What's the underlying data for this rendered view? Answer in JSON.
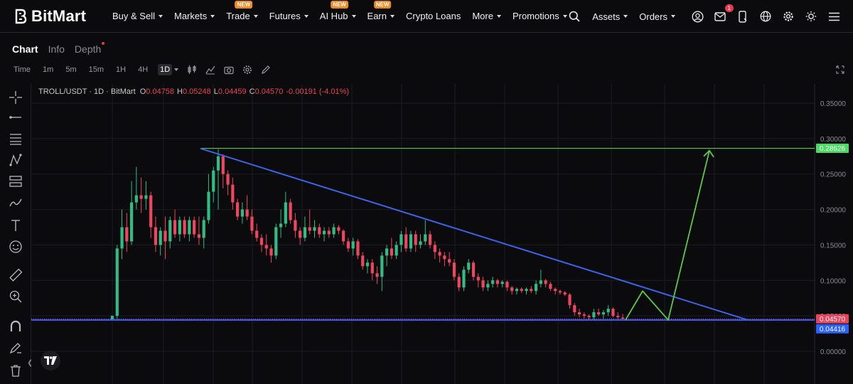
{
  "brand": {
    "name": "BitMart"
  },
  "nav": {
    "items": [
      {
        "label": "Buy & Sell",
        "caret": true,
        "badge": ""
      },
      {
        "label": "Markets",
        "caret": true,
        "badge": ""
      },
      {
        "label": "Trade",
        "caret": true,
        "badge": "NEW"
      },
      {
        "label": "Futures",
        "caret": true,
        "badge": ""
      },
      {
        "label": "AI Hub",
        "caret": true,
        "badge": "NEW"
      },
      {
        "label": "Earn",
        "caret": true,
        "badge": "NEW"
      },
      {
        "label": "Crypto Loans",
        "caret": false,
        "badge": ""
      },
      {
        "label": "More",
        "caret": true,
        "badge": ""
      },
      {
        "label": "Promotions",
        "caret": true,
        "badge": ""
      }
    ],
    "assets_label": "Assets",
    "orders_label": "Orders",
    "notification_count": "1"
  },
  "tabs": {
    "chart": "Chart",
    "info": "Info",
    "depth": "Depth"
  },
  "timeframes": {
    "time_label": "Time",
    "items": [
      "1m",
      "5m",
      "15m",
      "1H",
      "4H",
      "1D"
    ],
    "active": "1D"
  },
  "legend": {
    "symbol": "TROLL/USDT · 1D · BitMart",
    "open_label": "O",
    "open": "0.04758",
    "high_label": "H",
    "high": "0.05248",
    "low_label": "L",
    "low": "0.04459",
    "close_label": "C",
    "close": "0.04570",
    "change": "-0.00191 (-4.01%)"
  },
  "chart_data": {
    "type": "candlestick",
    "pair": "TROLL/USDT",
    "interval": "1D",
    "exchange": "BitMart",
    "ylim": [
      -0.01,
      0.355
    ],
    "y_ticks": [
      {
        "value": 0.0,
        "label": "0.00000"
      },
      {
        "value": 0.05,
        "label": "0.05000"
      },
      {
        "value": 0.1,
        "label": "0.10000"
      },
      {
        "value": 0.15,
        "label": "0.15000"
      },
      {
        "value": 0.2,
        "label": "0.20000"
      },
      {
        "value": 0.25,
        "label": "0.25000"
      },
      {
        "value": 0.3,
        "label": "0.30000"
      },
      {
        "value": 0.35,
        "label": "0.35000"
      }
    ],
    "price_labels": [
      {
        "value": 0.28626,
        "label": "0.28626",
        "color": "#4cd964"
      },
      {
        "value": 0.0457,
        "label": "0.04570",
        "color": "#e8435a"
      },
      {
        "value": 0.04416,
        "label": "0.04416",
        "color": "#2962ff"
      }
    ],
    "candles": [
      [
        0.045,
        0.05,
        0.045,
        0.05
      ],
      [
        0.05,
        0.15,
        0.045,
        0.145
      ],
      [
        0.145,
        0.2,
        0.13,
        0.175
      ],
      [
        0.175,
        0.195,
        0.14,
        0.155
      ],
      [
        0.155,
        0.24,
        0.15,
        0.21
      ],
      [
        0.21,
        0.26,
        0.2,
        0.22
      ],
      [
        0.22,
        0.245,
        0.195,
        0.215
      ],
      [
        0.215,
        0.24,
        0.2,
        0.22
      ],
      [
        0.22,
        0.225,
        0.16,
        0.175
      ],
      [
        0.175,
        0.19,
        0.14,
        0.15
      ],
      [
        0.15,
        0.175,
        0.135,
        0.17
      ],
      [
        0.17,
        0.19,
        0.13,
        0.155
      ],
      [
        0.155,
        0.19,
        0.145,
        0.185
      ],
      [
        0.185,
        0.2,
        0.16,
        0.165
      ],
      [
        0.165,
        0.19,
        0.155,
        0.185
      ],
      [
        0.185,
        0.19,
        0.16,
        0.165
      ],
      [
        0.165,
        0.19,
        0.155,
        0.185
      ],
      [
        0.185,
        0.19,
        0.16,
        0.165
      ],
      [
        0.165,
        0.19,
        0.15,
        0.16
      ],
      [
        0.16,
        0.19,
        0.145,
        0.185
      ],
      [
        0.185,
        0.25,
        0.18,
        0.225
      ],
      [
        0.225,
        0.26,
        0.21,
        0.255
      ],
      [
        0.255,
        0.285,
        0.2,
        0.275
      ],
      [
        0.275,
        0.278,
        0.23,
        0.25
      ],
      [
        0.25,
        0.255,
        0.22,
        0.235
      ],
      [
        0.235,
        0.245,
        0.2,
        0.21
      ],
      [
        0.21,
        0.215,
        0.185,
        0.19
      ],
      [
        0.19,
        0.21,
        0.18,
        0.2
      ],
      [
        0.2,
        0.22,
        0.185,
        0.19
      ],
      [
        0.19,
        0.2,
        0.165,
        0.17
      ],
      [
        0.17,
        0.18,
        0.155,
        0.16
      ],
      [
        0.16,
        0.165,
        0.14,
        0.15
      ],
      [
        0.15,
        0.165,
        0.135,
        0.145
      ],
      [
        0.145,
        0.15,
        0.125,
        0.135
      ],
      [
        0.135,
        0.18,
        0.13,
        0.175
      ],
      [
        0.175,
        0.2,
        0.16,
        0.18
      ],
      [
        0.18,
        0.225,
        0.175,
        0.21
      ],
      [
        0.21,
        0.215,
        0.18,
        0.185
      ],
      [
        0.185,
        0.195,
        0.16,
        0.17
      ],
      [
        0.17,
        0.175,
        0.15,
        0.16
      ],
      [
        0.16,
        0.19,
        0.155,
        0.175
      ],
      [
        0.175,
        0.2,
        0.165,
        0.17
      ],
      [
        0.17,
        0.185,
        0.16,
        0.175
      ],
      [
        0.175,
        0.18,
        0.16,
        0.165
      ],
      [
        0.165,
        0.175,
        0.155,
        0.17
      ],
      [
        0.17,
        0.175,
        0.16,
        0.165
      ],
      [
        0.165,
        0.18,
        0.16,
        0.175
      ],
      [
        0.175,
        0.178,
        0.165,
        0.17
      ],
      [
        0.17,
        0.172,
        0.15,
        0.155
      ],
      [
        0.155,
        0.16,
        0.14,
        0.145
      ],
      [
        0.145,
        0.16,
        0.135,
        0.155
      ],
      [
        0.155,
        0.158,
        0.13,
        0.135
      ],
      [
        0.135,
        0.14,
        0.115,
        0.12
      ],
      [
        0.12,
        0.13,
        0.11,
        0.125
      ],
      [
        0.125,
        0.13,
        0.1,
        0.11
      ],
      [
        0.11,
        0.12,
        0.095,
        0.105
      ],
      [
        0.105,
        0.14,
        0.085,
        0.135
      ],
      [
        0.135,
        0.15,
        0.12,
        0.145
      ],
      [
        0.145,
        0.16,
        0.13,
        0.135
      ],
      [
        0.135,
        0.155,
        0.13,
        0.15
      ],
      [
        0.15,
        0.17,
        0.14,
        0.165
      ],
      [
        0.165,
        0.175,
        0.14,
        0.145
      ],
      [
        0.145,
        0.17,
        0.14,
        0.165
      ],
      [
        0.165,
        0.17,
        0.14,
        0.15
      ],
      [
        0.15,
        0.165,
        0.145,
        0.155
      ],
      [
        0.155,
        0.185,
        0.15,
        0.165
      ],
      [
        0.165,
        0.17,
        0.145,
        0.15
      ],
      [
        0.15,
        0.155,
        0.13,
        0.14
      ],
      [
        0.14,
        0.145,
        0.125,
        0.135
      ],
      [
        0.135,
        0.14,
        0.12,
        0.13
      ],
      [
        0.13,
        0.14,
        0.12,
        0.125
      ],
      [
        0.125,
        0.13,
        0.1,
        0.105
      ],
      [
        0.105,
        0.11,
        0.085,
        0.09
      ],
      [
        0.09,
        0.12,
        0.085,
        0.115
      ],
      [
        0.115,
        0.13,
        0.11,
        0.125
      ],
      [
        0.125,
        0.128,
        0.1,
        0.105
      ],
      [
        0.105,
        0.11,
        0.09,
        0.1
      ],
      [
        0.1,
        0.105,
        0.085,
        0.09
      ],
      [
        0.09,
        0.1,
        0.085,
        0.095
      ],
      [
        0.095,
        0.105,
        0.09,
        0.1
      ],
      [
        0.1,
        0.102,
        0.09,
        0.095
      ],
      [
        0.095,
        0.1,
        0.09,
        0.098
      ],
      [
        0.098,
        0.1,
        0.085,
        0.09
      ],
      [
        0.09,
        0.092,
        0.08,
        0.085
      ],
      [
        0.085,
        0.09,
        0.08,
        0.088
      ],
      [
        0.088,
        0.09,
        0.082,
        0.085
      ],
      [
        0.085,
        0.09,
        0.08,
        0.088
      ],
      [
        0.088,
        0.092,
        0.082,
        0.085
      ],
      [
        0.085,
        0.1,
        0.08,
        0.095
      ],
      [
        0.095,
        0.115,
        0.09,
        0.1
      ],
      [
        0.1,
        0.102,
        0.09,
        0.095
      ],
      [
        0.095,
        0.098,
        0.085,
        0.088
      ],
      [
        0.088,
        0.09,
        0.08,
        0.085
      ],
      [
        0.085,
        0.087,
        0.08,
        0.083
      ],
      [
        0.083,
        0.085,
        0.078,
        0.08
      ],
      [
        0.08,
        0.082,
        0.06,
        0.065
      ],
      [
        0.065,
        0.068,
        0.05,
        0.055
      ],
      [
        0.055,
        0.06,
        0.048,
        0.052
      ],
      [
        0.052,
        0.055,
        0.046,
        0.05
      ],
      [
        0.05,
        0.052,
        0.045,
        0.048
      ],
      [
        0.048,
        0.06,
        0.045,
        0.055
      ],
      [
        0.055,
        0.06,
        0.05,
        0.052
      ],
      [
        0.052,
        0.058,
        0.046,
        0.055
      ],
      [
        0.055,
        0.065,
        0.05,
        0.06
      ],
      [
        0.06,
        0.062,
        0.048,
        0.05
      ],
      [
        0.05,
        0.055,
        0.045,
        0.048
      ],
      [
        0.04758,
        0.05248,
        0.04459,
        0.0457
      ]
    ],
    "drawings": {
      "trendline": {
        "from": [
          0.286
        ],
        "to": [
          0.04416
        ],
        "color": "#3d63e6"
      },
      "support_line": {
        "value": 0.04416,
        "color": "#2f5cff"
      },
      "target_line": {
        "value": 0.28626,
        "color": "#5cc84a"
      },
      "projection_path_color": "#5cc84a"
    },
    "colors": {
      "up": "#2ebd85",
      "down": "#f0455f",
      "grid": "#1c1c21",
      "background": "#0b0b0e",
      "axis_text": "#8b8b90"
    }
  }
}
